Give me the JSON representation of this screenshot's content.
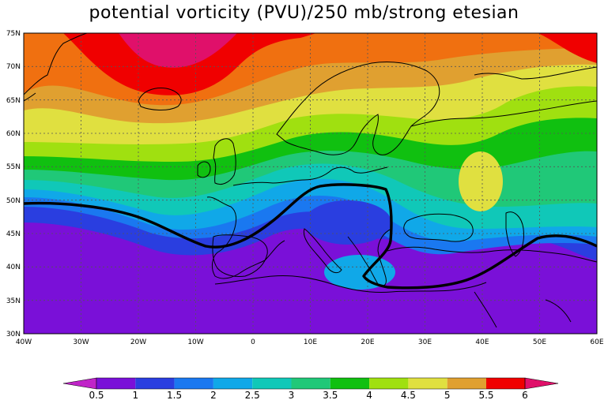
{
  "title": "potential vorticity (PVU)/250 mb/strong etesian",
  "lat_labels": [
    "75N",
    "70N",
    "65N",
    "60N",
    "55N",
    "50N",
    "45N",
    "40N",
    "35N",
    "30N"
  ],
  "lon_labels": [
    "40W",
    "30W",
    "20W",
    "10W",
    "0",
    "10E",
    "20E",
    "30E",
    "40E",
    "50E",
    "60E"
  ],
  "map_extent": {
    "lon": [
      -40,
      60
    ],
    "lat": [
      30,
      75
    ]
  },
  "colorbar": {
    "tick_labels": [
      "0.5",
      "1",
      "1.5",
      "2",
      "2.5",
      "3",
      "3.5",
      "4",
      "4.5",
      "5",
      "5.5",
      "6"
    ],
    "colors": [
      "#c024c8",
      "#7a10d8",
      "#2a3ee0",
      "#1a78f0",
      "#10a8e8",
      "#10c8b8",
      "#20c878",
      "#10c010",
      "#a0e010",
      "#e0e040",
      "#e0a030",
      "#f07010",
      "#f00000",
      "#e0106a"
    ]
  },
  "colors": {
    "contour_line": "#000000",
    "coastline": "#000000",
    "grid": "#555555"
  }
}
